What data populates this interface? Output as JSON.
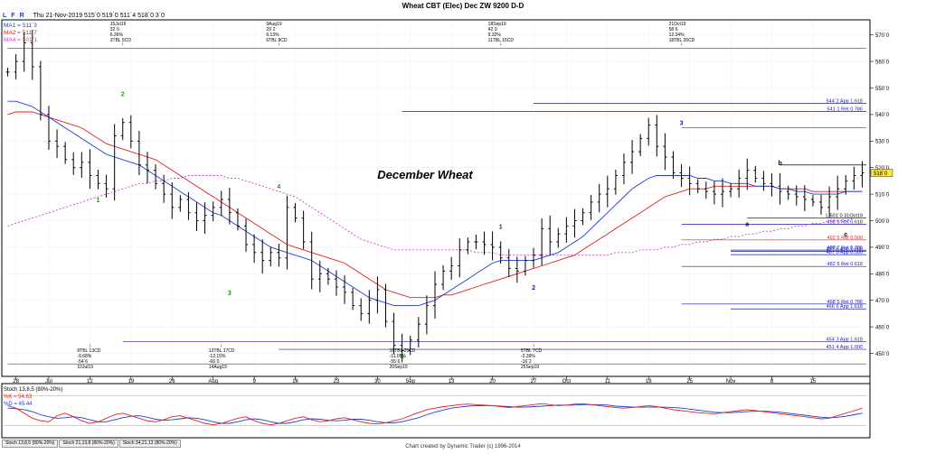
{
  "title": "Wheat CBT (Elec) Dec ZW 9200 D-D",
  "toolbar": {
    "buttons": [
      "L",
      "F",
      "R"
    ],
    "info": "Thu 21-Nov-2019  515`0  519`0  511`4  518`0  3`0"
  },
  "legend": [
    {
      "label": "MA1 = 511`3",
      "color": "#1a3fd0"
    },
    {
      "label": "MA2 = 511`7",
      "color": "#e02020"
    },
    {
      "label": "MA4 = 501`1",
      "color": "#d040d0"
    }
  ],
  "footer": "Chart created by Dynamic Trader  (c) 1996-2014",
  "tabs": [
    "Stoch 13,8,5 (80%-20%)",
    "Stoch 21,13,8 (80%-20%)",
    "Stoch 34,21,13 (80%-20%)"
  ],
  "stoch_legend": {
    "title": "Stoch 13,8,5 (80%-20%)",
    "k": "%K = 54.63",
    "d": "%D = 45.44"
  },
  "colors": {
    "bar": "#000000",
    "ma1": "#1a3fd0",
    "ma2": "#e02020",
    "ma4": "#d040d0",
    "green": "#1a9a1a",
    "blue": "#1a1ab0",
    "red": "#e02020"
  },
  "chart_data": {
    "type": "ohlc",
    "title": "December Wheat",
    "yaxis": {
      "min": 442,
      "max": 575,
      "ticks": [
        450,
        460,
        470,
        480,
        490,
        500,
        510,
        520,
        530,
        540,
        550,
        560,
        570
      ],
      "tick_labels": [
        "450`0",
        "460`0",
        "470`0",
        "480`0",
        "490`0",
        "500`0",
        "510`0",
        "520`0",
        "530`0",
        "540`0",
        "550`0",
        "560`0",
        "570`0"
      ]
    },
    "last_price_label": "518`0",
    "xaxis": {
      "labels": [
        "28",
        "Jul",
        "12",
        "19",
        "26",
        "Aug",
        "9",
        "16",
        "23",
        "30",
        "Sep",
        "13",
        "20",
        "27",
        "Oct",
        "11",
        "18",
        "25",
        "Nov",
        "8",
        "15"
      ],
      "label_bars": [
        1,
        5,
        10,
        15,
        20,
        25,
        30,
        35,
        40,
        45,
        49,
        54,
        59,
        64,
        68,
        73,
        78,
        83,
        88,
        93,
        98
      ]
    },
    "n_bars": 105,
    "closes": [
      556,
      560,
      567,
      558,
      540,
      530,
      528,
      523,
      520,
      522,
      517,
      514,
      512,
      532,
      537,
      530,
      521,
      519,
      514,
      510,
      505,
      508,
      503,
      500,
      502,
      505,
      508,
      503,
      498,
      491,
      488,
      485,
      488,
      486,
      505,
      501,
      492,
      478,
      480,
      478,
      475,
      473,
      468,
      465,
      470,
      474,
      462,
      453,
      451,
      455,
      461,
      468,
      476,
      481,
      483,
      489,
      492,
      492,
      491,
      490,
      486,
      482,
      481,
      485,
      487,
      497,
      492,
      495,
      498,
      500,
      503,
      507,
      510,
      512,
      517,
      522,
      526,
      531,
      536,
      528,
      524,
      518,
      516,
      514,
      512,
      511,
      510,
      511,
      512,
      516,
      519,
      516,
      514,
      513,
      511,
      510,
      509,
      508,
      507,
      505,
      509,
      512,
      515,
      517,
      518
    ],
    "ma1_values": [
      545,
      545,
      544,
      543,
      541,
      539,
      537,
      535,
      533,
      531,
      529,
      527,
      525,
      524,
      523,
      522,
      521,
      519,
      517,
      515,
      513,
      511,
      509,
      507,
      505,
      503,
      502,
      500,
      498,
      496,
      494,
      492,
      490,
      489,
      488,
      487,
      486,
      485,
      483,
      481,
      479,
      477,
      475,
      473,
      471,
      470,
      469,
      468,
      468,
      468,
      468,
      469,
      470,
      472,
      474,
      476,
      478,
      480,
      482,
      484,
      485,
      485,
      485,
      485,
      485,
      486,
      487,
      488,
      490,
      492,
      494,
      497,
      500,
      503,
      506,
      509,
      512,
      514,
      516,
      517,
      517,
      517,
      517,
      517,
      516,
      516,
      515,
      515,
      514,
      514,
      514,
      513,
      513,
      513,
      512,
      512,
      511,
      511,
      510,
      510,
      510,
      510,
      511,
      511,
      511
    ],
    "ma2_values": [
      540,
      541,
      541,
      541,
      540,
      539,
      538,
      537,
      536,
      535,
      533,
      531,
      529,
      528,
      527,
      526,
      525,
      524,
      523,
      521,
      519,
      517,
      515,
      513,
      511,
      509,
      507,
      505,
      503,
      501,
      499,
      497,
      495,
      493,
      491,
      490,
      489,
      488,
      487,
      486,
      485,
      484,
      482,
      480,
      478,
      476,
      474,
      473,
      472,
      471,
      471,
      471,
      471,
      472,
      472,
      473,
      474,
      475,
      476,
      477,
      478,
      479,
      480,
      481,
      482,
      483,
      484,
      485,
      486,
      487,
      489,
      491,
      493,
      495,
      497,
      499,
      501,
      503,
      505,
      507,
      509,
      510,
      511,
      512,
      512,
      512,
      513,
      513,
      513,
      513,
      513,
      513,
      513,
      513,
      512,
      512,
      512,
      512,
      511,
      511,
      511,
      511,
      511,
      511,
      511
    ],
    "ma4_values": [
      498,
      499,
      500,
      501,
      502,
      503,
      504,
      505,
      506,
      507,
      508,
      509,
      510,
      511,
      512,
      513,
      514,
      514,
      515,
      515,
      516,
      516,
      517,
      517,
      517,
      517,
      517,
      516,
      516,
      515,
      514,
      513,
      512,
      511,
      510,
      509,
      507,
      505,
      503,
      501,
      499,
      497,
      495,
      493,
      492,
      491,
      490,
      489,
      489,
      489,
      489,
      489,
      489,
      489,
      489,
      489,
      489,
      488,
      488,
      488,
      487,
      487,
      487,
      487,
      487,
      487,
      487,
      487,
      487,
      487,
      487,
      487,
      487,
      487,
      488,
      488,
      488,
      489,
      489,
      489,
      490,
      490,
      491,
      491,
      492,
      492,
      493,
      493,
      494,
      494,
      495,
      495,
      496,
      496,
      497,
      497,
      498,
      498,
      499,
      499,
      500,
      500,
      500,
      501,
      501
    ],
    "stoch_k": [
      60,
      55,
      45,
      35,
      30,
      28,
      40,
      45,
      38,
      30,
      25,
      28,
      35,
      42,
      45,
      40,
      35,
      30,
      28,
      32,
      38,
      40,
      35,
      30,
      25,
      22,
      25,
      30,
      35,
      38,
      30,
      25,
      22,
      25,
      30,
      35,
      38,
      32,
      28,
      30,
      34,
      36,
      32,
      28,
      25,
      24,
      26,
      30,
      34,
      40,
      46,
      52,
      55,
      58,
      60,
      62,
      63,
      62,
      61,
      60,
      58,
      56,
      58,
      60,
      62,
      64,
      62,
      60,
      61,
      63,
      64,
      62,
      60,
      58,
      56,
      55,
      56,
      58,
      60,
      58,
      55,
      52,
      50,
      48,
      46,
      45,
      44,
      46,
      48,
      50,
      52,
      50,
      48,
      46,
      44,
      42,
      40,
      38,
      36,
      34,
      35,
      40,
      45,
      50,
      55
    ],
    "stoch_d": [
      55,
      54,
      52,
      48,
      42,
      38,
      35,
      36,
      38,
      36,
      32,
      28,
      28,
      32,
      36,
      39,
      40,
      37,
      33,
      31,
      32,
      34,
      36,
      35,
      32,
      28,
      25,
      25,
      28,
      32,
      34,
      32,
      28,
      25,
      25,
      28,
      32,
      34,
      33,
      31,
      30,
      31,
      33,
      33,
      31,
      28,
      26,
      26,
      28,
      32,
      36,
      42,
      47,
      51,
      55,
      57,
      59,
      60,
      60,
      60,
      59,
      58,
      57,
      57,
      58,
      59,
      60,
      61,
      61,
      61,
      62,
      62,
      62,
      61,
      59,
      58,
      57,
      57,
      57,
      57,
      57,
      56,
      55,
      53,
      51,
      49,
      47,
      46,
      46,
      47,
      48,
      49,
      49,
      48,
      47,
      45,
      43,
      41,
      39,
      37,
      36,
      37,
      39,
      42,
      45
    ],
    "annotations": [
      {
        "bar": 3,
        "lines": [
          "",
          "",
          "",
          ""
        ],
        "pos": "top"
      },
      {
        "bar": 14,
        "lines": [
          "15Jul19",
          "32`0",
          "6.26%",
          "3TBL 5CD"
        ],
        "pos": "top"
      },
      {
        "bar": 33,
        "lines": [
          "9Aug19",
          "29`2",
          "6.13%",
          "6TBL 8CD"
        ],
        "pos": "top"
      },
      {
        "bar": 60,
        "lines": [
          "18Sep19",
          "42`0",
          "9.32%",
          "11TBL 15CD"
        ],
        "pos": "top"
      },
      {
        "bar": 82,
        "lines": [
          "21Oct19",
          "58`6",
          "12.34%",
          "18TBL 26CD"
        ],
        "pos": "top"
      },
      {
        "bar": 10,
        "lines": [
          "8TBL 13CD",
          "-9.68%",
          "-54`6",
          "10Jul19"
        ],
        "pos": "bottom"
      },
      {
        "bar": 26,
        "lines": [
          "13TBL 17CD",
          "-12.15%",
          "-66`0",
          "14Aug19"
        ],
        "pos": "bottom"
      },
      {
        "bar": 48,
        "lines": [
          "16TBL 25CD",
          "-11.05%",
          "-55`6",
          "20Sep19"
        ],
        "pos": "bottom"
      },
      {
        "bar": 64,
        "lines": [
          "5TBL 7CD",
          "-3.39%",
          "-16`2",
          "25Sep19"
        ],
        "pos": "bottom"
      }
    ],
    "wave_labels": [
      {
        "text": "1",
        "bar": 11,
        "price": 507,
        "color": "green"
      },
      {
        "text": "2",
        "bar": 14,
        "price": 547,
        "color": "green"
      },
      {
        "text": "3",
        "bar": 27,
        "price": 472,
        "color": "green"
      },
      {
        "text": "4",
        "bar": 33,
        "price": 512,
        "color": "green"
      },
      {
        "text": "5",
        "bar": 48,
        "price": 448,
        "color": "green"
      },
      {
        "text": "1",
        "bar": 60,
        "price": 497,
        "color": "blue"
      },
      {
        "text": "2",
        "bar": 64,
        "price": 474,
        "color": "blue"
      },
      {
        "text": "3",
        "bar": 82,
        "price": 536,
        "color": "blue"
      },
      {
        "text": "a",
        "bar": 90,
        "price": 498,
        "color": "black"
      },
      {
        "text": "b",
        "bar": 94,
        "price": 521,
        "color": "black"
      },
      {
        "text": "c",
        "bar": 102,
        "price": 494,
        "color": "black"
      }
    ],
    "hlines": [
      {
        "price": 565,
        "from_bar": 0,
        "color": "green",
        "label": ""
      },
      {
        "price": 544.25,
        "from_bar": 64,
        "color": "blue",
        "label": "544`2 App 1.618"
      },
      {
        "price": 541.1,
        "from_bar": 48,
        "color": "blue",
        "label": "541`1 Ret 0.786"
      },
      {
        "price": 535,
        "from_bar": 82,
        "color": "green",
        "label": ""
      },
      {
        "price": 521,
        "from_bar": 94,
        "color": "black",
        "label": ""
      },
      {
        "price": 501,
        "from_bar": 90,
        "color": "black",
        "label": "L 501`0 31Oct19"
      },
      {
        "price": 498.6,
        "from_bar": 82,
        "color": "blue",
        "label": "498`6 Ret 0.618"
      },
      {
        "price": 492.75,
        "from_bar": 82,
        "color": "red",
        "label": "492`6 Ret 0.500"
      },
      {
        "price": 488.9,
        "from_bar": 88,
        "color": "blue",
        "label": "488`7 Ret 0.786"
      },
      {
        "price": 488.4,
        "from_bar": 88,
        "color": "blue",
        "label": "487`6 App 1.000"
      },
      {
        "price": 487.2,
        "from_bar": 88,
        "color": "blue",
        "label": "487`0 App 0.500"
      },
      {
        "price": 482.75,
        "from_bar": 82,
        "color": "blue",
        "label": "482`6 Ret 0.618"
      },
      {
        "price": 468.6,
        "from_bar": 82,
        "color": "blue",
        "label": "468`5 Ret 0.786"
      },
      {
        "price": 466.75,
        "from_bar": 88,
        "color": "blue",
        "label": "466`6 App 1.618"
      },
      {
        "price": 454.4,
        "from_bar": 14,
        "color": "blue",
        "label": "454`3 App 1.618"
      },
      {
        "price": 451.5,
        "from_bar": 33,
        "color": "blue",
        "label": "451`4 App 1.000"
      },
      {
        "price": 446,
        "from_bar": 0,
        "color": "green",
        "label": ""
      },
      {
        "price": 436.6,
        "from_bar": 33,
        "color": "blue",
        "label": "436`5 App 1.272"
      }
    ]
  }
}
